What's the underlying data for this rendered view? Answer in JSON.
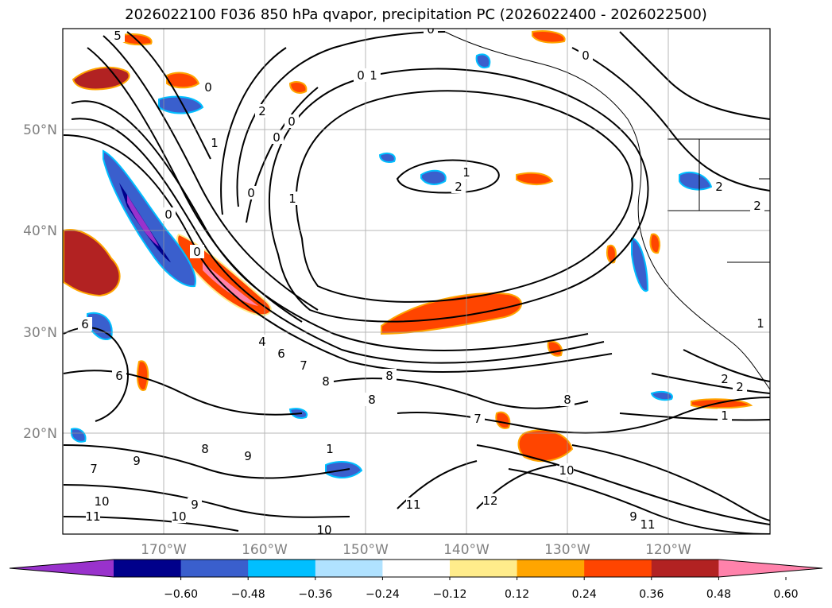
{
  "title": "2026022100 F036 850 hPa qvapor, precipitation PC (2026022400 - 2026022500)",
  "map": {
    "lat_labels": [
      "50°N",
      "40°N",
      "30°N",
      "20°N"
    ],
    "lon_labels": [
      "170°W",
      "160°W",
      "150°W",
      "140°W",
      "130°W",
      "120°W"
    ],
    "contour_labels": [
      "5",
      "0",
      "1",
      "0",
      "1",
      "2",
      "0",
      "0",
      "0",
      "0",
      "1",
      "1",
      "2",
      "0",
      "0",
      "4",
      "6",
      "7",
      "8",
      "8",
      "8",
      "6",
      "6",
      "7",
      "9",
      "9",
      "10",
      "11",
      "7",
      "8",
      "9",
      "1",
      "10",
      "11",
      "12",
      "10",
      "8",
      "10",
      "11",
      "9",
      "1",
      "2",
      "2",
      "1",
      "2",
      "2",
      "0"
    ]
  },
  "colorbar": {
    "tick_labels": [
      "−0.60",
      "−0.48",
      "−0.36",
      "−0.24",
      "−0.12",
      "0.12",
      "0.24",
      "0.36",
      "0.48",
      "0.60"
    ],
    "colors": [
      "#9932CC",
      "#00008B",
      "#3A5FCD",
      "#00BFFF",
      "#B0E2FF",
      "#FFFFFF",
      "#FFEC8B",
      "#FFA500",
      "#FF4500",
      "#B22222",
      "#FF82AB"
    ]
  }
}
